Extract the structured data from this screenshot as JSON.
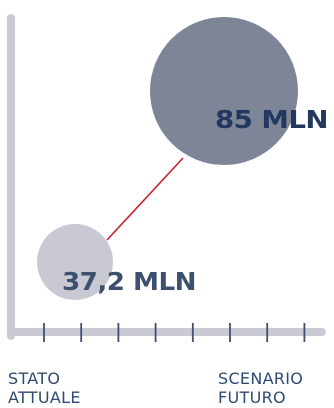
{
  "chart_data": {
    "type": "scatter",
    "categories": [
      "STATO\nATTUALE",
      "SCENARIO\nFUTURO"
    ],
    "category_lines": [
      [
        "STATO",
        "ATTUALE"
      ],
      [
        "SCENARIO",
        "FUTURO"
      ]
    ],
    "values": [
      37.2,
      85
    ],
    "data_labels": [
      "37,2 MLN",
      "85 MLN"
    ],
    "unit": "MLN",
    "tick_count": 8,
    "grid": false,
    "legend": "none",
    "colors": {
      "axis": "#c9cad4",
      "tick": "#3f4f6f",
      "bubble_small": "#c8c9d3",
      "bubble_large": "#7e8597",
      "connector": "#c8202e",
      "label_small": "#3d5070",
      "label_large": "#22385e",
      "category_text": "#2f4a72"
    }
  }
}
